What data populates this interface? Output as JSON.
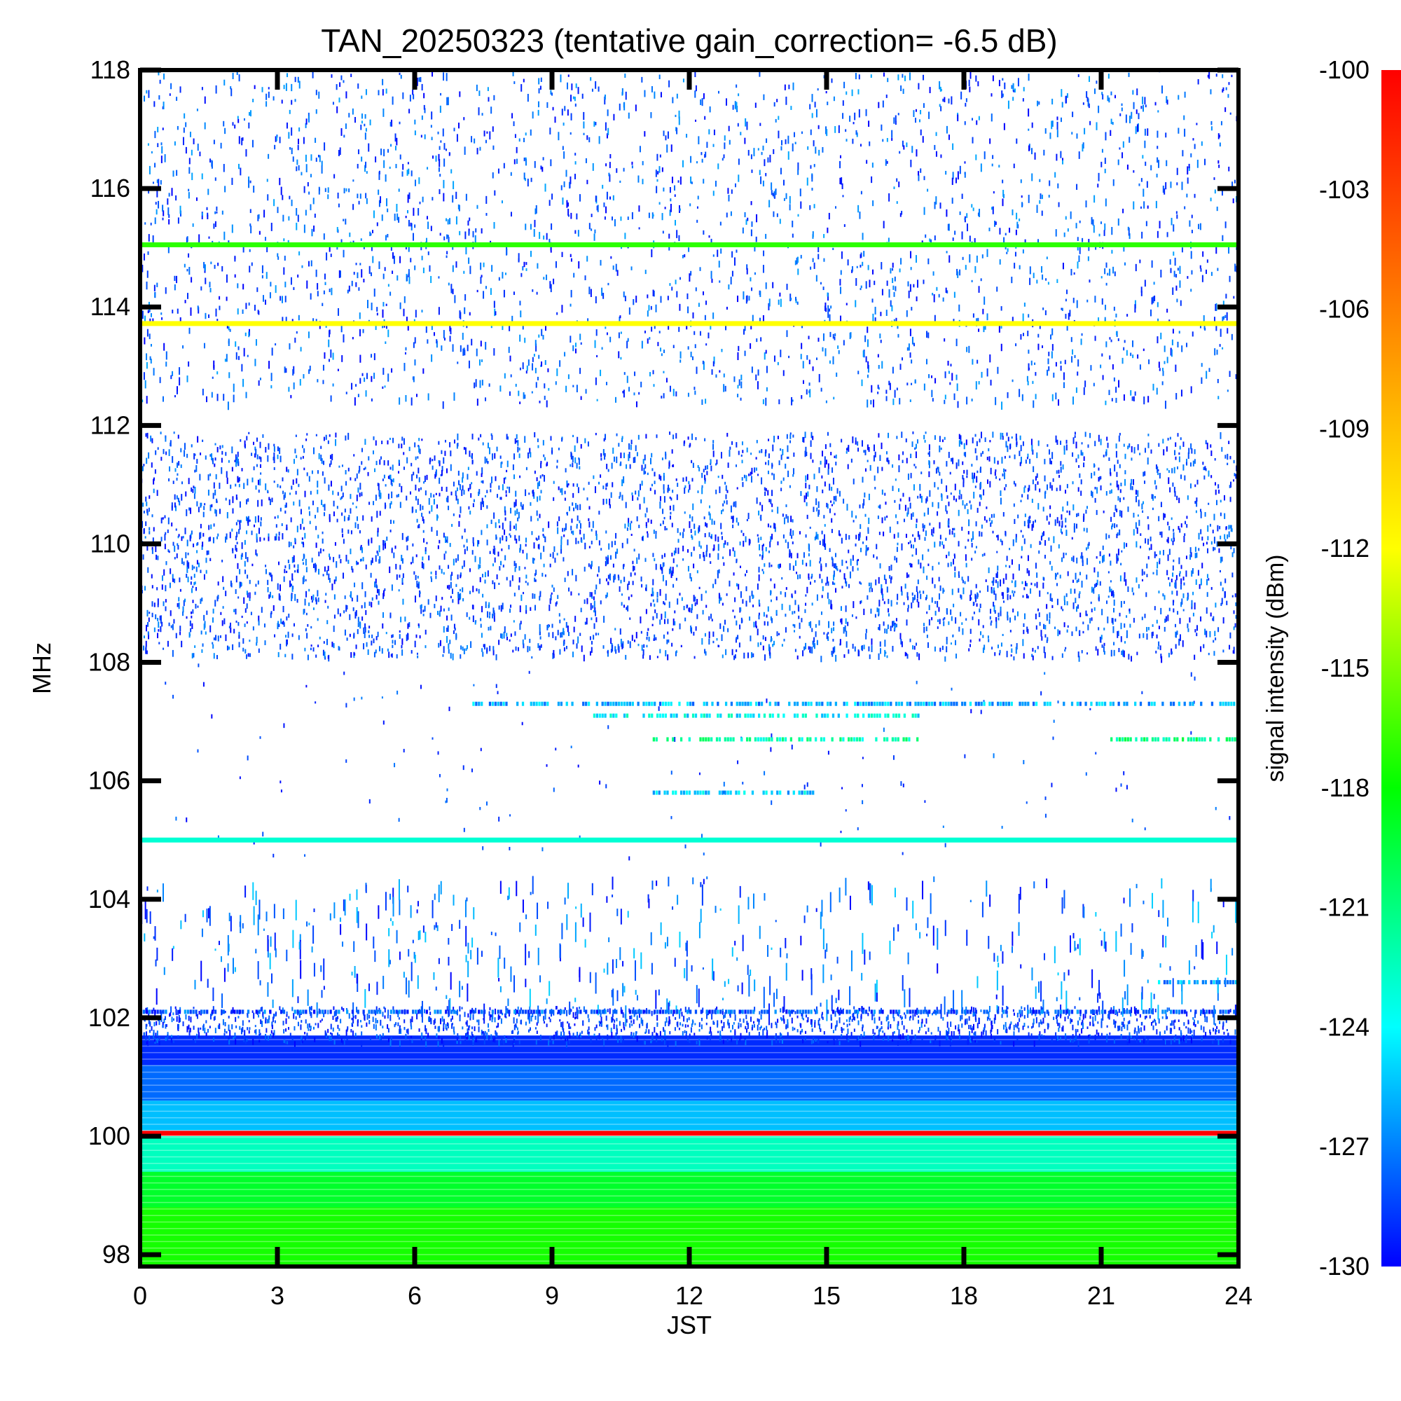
{
  "chart_data": {
    "type": "heatmap",
    "title": "TAN_20250323 (tentative gain_correction= -6.5 dB)",
    "xlabel": "JST",
    "ylabel": "MHz",
    "colorbar_label": "signal intensity (dBm)",
    "xlim": [
      0,
      24
    ],
    "ylim": [
      97.8,
      118
    ],
    "x_ticks": [
      0,
      3,
      6,
      9,
      12,
      15,
      18,
      21,
      24
    ],
    "y_ticks": [
      98,
      100,
      102,
      104,
      106,
      108,
      110,
      112,
      114,
      116,
      118
    ],
    "colorbar_range": [
      -130,
      -100
    ],
    "colorbar_ticks": [
      -100,
      -103,
      -106,
      -109,
      -112,
      -115,
      -118,
      -121,
      -124,
      -127,
      -130
    ],
    "colormap": [
      "#0000ff",
      "#00ffff",
      "#00ff00",
      "#ffff00",
      "#ff8000",
      "#ff0000"
    ],
    "persistent_lines_mhz": [
      {
        "freq": 115.05,
        "dbm": -117
      },
      {
        "freq": 113.72,
        "dbm": -112
      },
      {
        "freq": 105.0,
        "dbm": -123
      },
      {
        "freq": 100.05,
        "dbm": -100
      }
    ],
    "intermittent_bands_mhz": [
      {
        "freq": 107.3,
        "start": 7.2,
        "end": 24,
        "dbm": -126
      },
      {
        "freq": 107.1,
        "start": 9.9,
        "end": 17.0,
        "dbm": -124
      },
      {
        "freq": 106.7,
        "start": 11.2,
        "end": 17.0,
        "dbm": -122
      },
      {
        "freq": 106.7,
        "start": 21.2,
        "end": 24,
        "dbm": -121
      },
      {
        "freq": 105.8,
        "start": 11.2,
        "end": 14.7,
        "dbm": -125
      },
      {
        "freq": 102.1,
        "start": 0,
        "end": 24,
        "dbm": -128
      },
      {
        "freq": 102.6,
        "start": 22.0,
        "end": 24,
        "dbm": -126
      }
    ]
  }
}
